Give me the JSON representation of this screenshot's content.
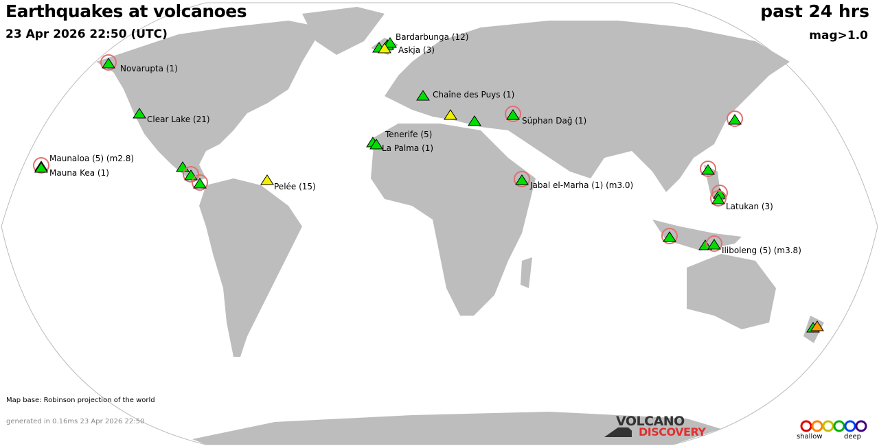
{
  "header": {
    "title": "Earthquakes at volcanoes",
    "datetime": "23 Apr 2026 22:50 (UTC)",
    "period": "past 24 hrs",
    "magnitude_filter": "mag>1.0"
  },
  "colors": {
    "land": "#bdbdbd",
    "ocean": "#ffffff",
    "recent": "#00e000",
    "yellow": "#f0f000",
    "orange": "#ff9900",
    "red": "#ff0000",
    "quake_ring": "#e07070"
  },
  "volcanoes": [
    {
      "label": "Novarupta (1)",
      "color": "green",
      "ring": true
    },
    {
      "label": "Bardarbunga (12)",
      "color": "green",
      "ring": false
    },
    {
      "label": "Askja (3)",
      "color": "yellow",
      "ring": false
    },
    {
      "label": "Clear Lake (21)",
      "color": "green",
      "ring": false
    },
    {
      "label": "Maunaloa (5) (m2.8)",
      "color": "red",
      "ring": true
    },
    {
      "label": "Mauna Kea (1)",
      "color": "green",
      "ring": false
    },
    {
      "label": "Chaîne des Puys (1)",
      "color": "green",
      "ring": false
    },
    {
      "label": "Tenerife (5)",
      "color": "green",
      "ring": false
    },
    {
      "label": "La Palma (1)",
      "color": "green",
      "ring": false
    },
    {
      "label": "Süphan Dağ (1)",
      "color": "green",
      "ring": true
    },
    {
      "label": "Pelée (15)",
      "color": "yellow",
      "ring": false
    },
    {
      "label": "Jabal el-Marha (1) (m3.0)",
      "color": "green",
      "ring": true
    },
    {
      "label": "Latukan (3)",
      "color": "green",
      "ring": true
    },
    {
      "label": "Iliboleng (5) (m3.8)",
      "color": "green",
      "ring": true
    }
  ],
  "footer": {
    "map_base": "Map base: Robinson projection of the world",
    "generated": "generated in 0.16ms 23 Apr 2026 22:50"
  },
  "logo": {
    "line1": "VOLCANO",
    "line2": "DISCOVERY"
  },
  "depth_legend": {
    "shallow": "shallow",
    "deep": "deep",
    "colors": [
      "#e00000",
      "#ff8000",
      "#c0c000",
      "#00b000",
      "#0040ff",
      "#400080"
    ]
  }
}
